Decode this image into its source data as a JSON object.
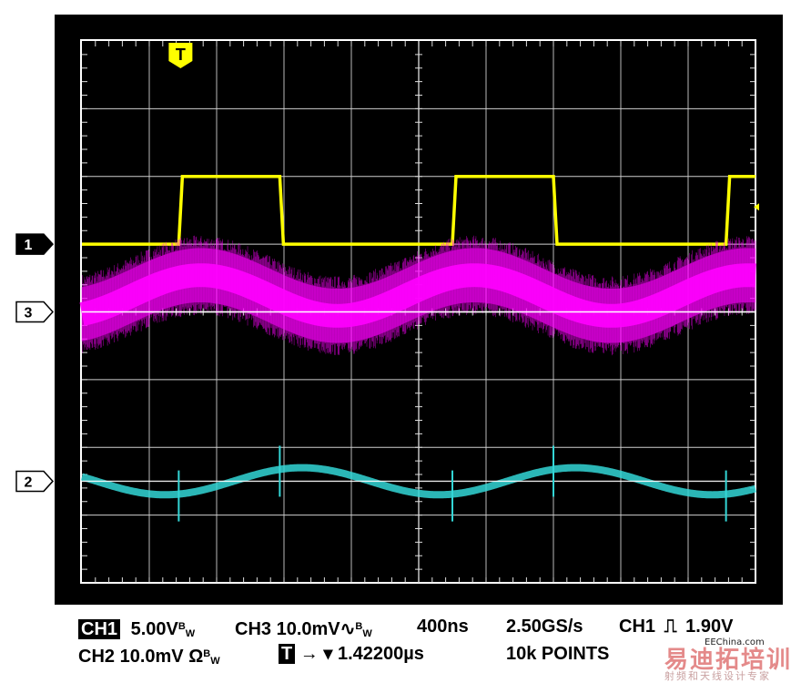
{
  "chart_data": {
    "type": "line",
    "instrument": "oscilloscope",
    "grid": {
      "divisions_x": 10,
      "divisions_y": 8,
      "on": true
    },
    "time_per_div_ns": 400,
    "x_range_ns": [
      0,
      4000
    ],
    "trigger_marker": "T",
    "series": [
      {
        "channel_marker": "1",
        "color": "#ffff00",
        "waveform": "square",
        "y_range_divs": [
          1,
          2
        ],
        "segments": [
          {
            "t_ns": 0,
            "level": "low"
          },
          {
            "t_ns": 575,
            "level": "high"
          },
          {
            "t_ns": 1175,
            "level": "low"
          },
          {
            "t_ns": 2200,
            "level": "high"
          },
          {
            "t_ns": 2800,
            "level": "low"
          },
          {
            "t_ns": 3825,
            "level": "high"
          }
        ]
      },
      {
        "channel_marker": "3",
        "color": "#ff00ff",
        "waveform": "noisy-sine",
        "baseline_div": 0,
        "period_ns": 1625,
        "ripple_amplitude_div": 0.3,
        "noise_band_div": 0.8
      },
      {
        "channel_marker": "2",
        "color": "#33d6d6",
        "waveform": "sine-with-spikes",
        "baseline_div": -2.5,
        "period_ns": 1625,
        "ripple_amplitude_div": 0.2,
        "spikes_at_ns": [
          575,
          1175,
          2200,
          2800,
          3825
        ]
      }
    ]
  },
  "readout": {
    "ch1_label": "CH1",
    "ch1_scale": "5.00V",
    "bw": "B",
    "bw_sub": "W",
    "ch3_scale": "CH3 10.0mV",
    "ch3_coupling": "∿",
    "timebase": "400ns",
    "sample_rate": "2.50GS/s",
    "trig_src": "CH1",
    "trig_slope": "⎍",
    "trig_level": "1.90V",
    "ch2_scale": "CH2 10.0mV",
    "ch2_impedance": "Ω",
    "trig_box": "T",
    "trig_arrows": "→ ▾",
    "trig_position": "1.42200µs",
    "points": "10k POINTS"
  },
  "watermark": {
    "site": "EEChina.com",
    "main": "易迪拓培训",
    "sub": "射频和天线设计专家"
  }
}
